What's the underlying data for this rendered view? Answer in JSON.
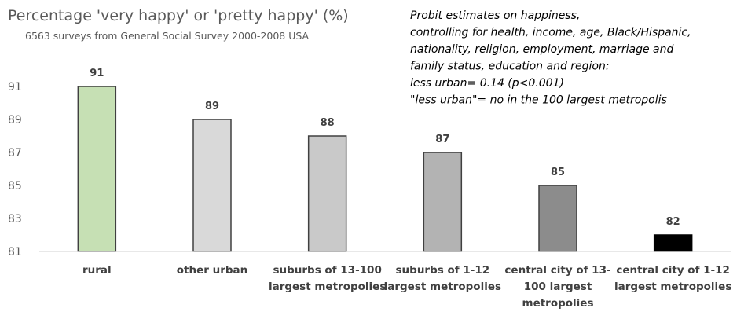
{
  "chart_data": {
    "type": "bar",
    "title": "Percentage 'very happy' or 'pretty happy' (%)",
    "subtitle": "6563 surveys from General Social Survey 2000-2008 USA",
    "annotation": [
      "Probit estimates on happiness,",
      "controlling for health, income, age, Black/Hispanic,",
      "nationality, religion, employment, marriage and",
      "family status, education and region:",
      "less urban= 0.14 (p<0.001)",
      "\"less urban\"= no in the 100 largest metropolis"
    ],
    "categories": [
      [
        "rural"
      ],
      [
        "other urban"
      ],
      [
        "suburbs of 13-100",
        "largest metropolies"
      ],
      [
        "suburbs of 1-12",
        "largest metropolies"
      ],
      [
        "central city of 13-",
        "100 largest",
        "metropolies"
      ],
      [
        "central city of 1-12",
        "largest metropolies"
      ]
    ],
    "values": [
      91,
      89,
      88,
      87,
      85,
      82
    ],
    "colors": [
      "#c6e0b4",
      "#d9d9d9",
      "#c9c9c9",
      "#b3b3b3",
      "#8c8c8c",
      "#000000"
    ],
    "ylim": [
      81,
      91
    ],
    "yticks": [
      81,
      83,
      85,
      87,
      89,
      91
    ],
    "grid": false,
    "data_labels": true
  }
}
